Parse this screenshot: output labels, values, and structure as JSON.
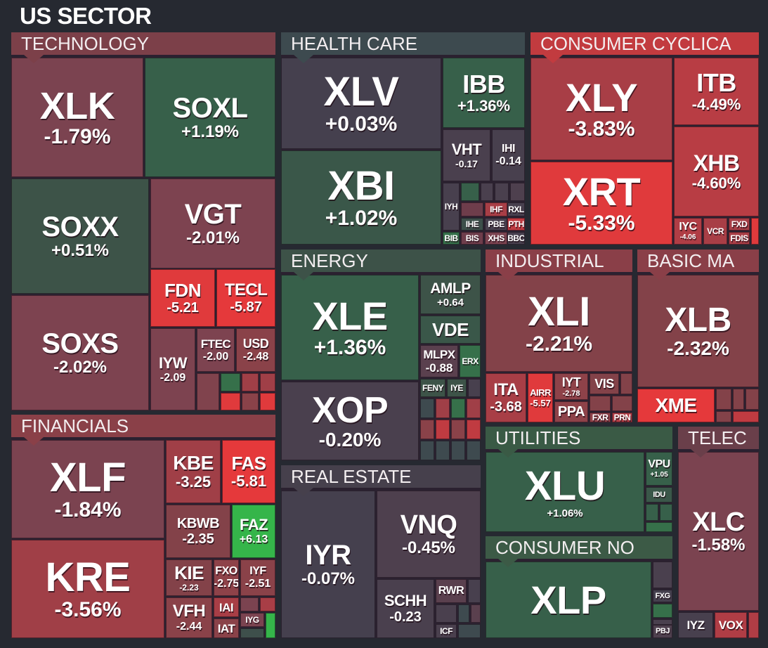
{
  "chart_data": {
    "type": "treemap",
    "title": "US SECTOR",
    "sectors": [
      {
        "name": "TECHNOLOGY",
        "color": "#7c4049",
        "tiles": [
          {
            "ticker": "XLK",
            "change": "-1.79%",
            "color": "#7b4350"
          },
          {
            "ticker": "SOXL",
            "change": "+1.19%",
            "color": "#37604a"
          },
          {
            "ticker": "SOXX",
            "change": "+0.51%",
            "color": "#3d5348"
          },
          {
            "ticker": "VGT",
            "change": "-2.01%",
            "color": "#7d4350"
          },
          {
            "ticker": "FDN",
            "change": "-5.21",
            "color": "#e03a3c"
          },
          {
            "ticker": "TECL",
            "change": "-5.87",
            "color": "#e5393b"
          },
          {
            "ticker": "SOXS",
            "change": "-2.02%",
            "color": "#7d4350"
          },
          {
            "ticker": "IYW",
            "change": "-2.09",
            "color": "#7d4350"
          },
          {
            "ticker": "FTEC",
            "change": "-2.00",
            "color": "#7d4350"
          },
          {
            "ticker": "USD",
            "change": "-2.48",
            "color": "#8a4249"
          },
          {
            "ticker": "",
            "change": "",
            "color": "#80434d"
          },
          {
            "ticker": "",
            "change": "",
            "color": "#36704a"
          },
          {
            "ticker": "",
            "change": "",
            "color": "#a03f47"
          },
          {
            "ticker": "",
            "change": "",
            "color": "#a03f47"
          },
          {
            "ticker": "",
            "change": "",
            "color": "#e03a3c"
          },
          {
            "ticker": "",
            "change": "",
            "color": "#8a4249"
          },
          {
            "ticker": "",
            "change": "",
            "color": "#e03a3c"
          }
        ]
      },
      {
        "name": "FINANCIALS",
        "color": "#8a4048",
        "tiles": [
          {
            "ticker": "XLF",
            "change": "-1.84%",
            "color": "#7b4350"
          },
          {
            "ticker": "KBE",
            "change": "-3.25",
            "color": "#a03f47"
          },
          {
            "ticker": "FAS",
            "change": "-5.81",
            "color": "#e5393b"
          },
          {
            "ticker": "KBWB",
            "change": "-2.35",
            "color": "#834249"
          },
          {
            "ticker": "FAZ",
            "change": "+6.13",
            "color": "#35b54a"
          },
          {
            "ticker": "KRE",
            "change": "-3.56%",
            "color": "#a03f47"
          },
          {
            "ticker": "KIE",
            "change": "-2.23",
            "color": "#834249"
          },
          {
            "ticker": "FXO",
            "change": "-2.75",
            "color": "#8e4249"
          },
          {
            "ticker": "IYF",
            "change": "-2.51",
            "color": "#8a4249"
          },
          {
            "ticker": "VFH",
            "change": "-2.44",
            "color": "#8a4249"
          },
          {
            "ticker": "IAI",
            "change": "",
            "color": "#a83e46"
          },
          {
            "ticker": "IAT",
            "change": "",
            "color": "#8a4249"
          },
          {
            "ticker": "",
            "change": "",
            "color": "#7b4350"
          },
          {
            "ticker": "",
            "change": "",
            "color": "#a83e46"
          },
          {
            "ticker": "IYG",
            "change": "",
            "color": "#7b4350"
          },
          {
            "ticker": "",
            "change": "",
            "color": "#3e4f4b"
          },
          {
            "ticker": "",
            "change": "",
            "color": "#35b54a"
          }
        ]
      },
      {
        "name": "HEALTH CARE",
        "color": "#3d4a4f",
        "tiles": [
          {
            "ticker": "XLV",
            "change": "+0.03%",
            "color": "#45404e"
          },
          {
            "ticker": "XBI",
            "change": "+1.02%",
            "color": "#3a5749"
          },
          {
            "ticker": "IBB",
            "change": "+1.36%",
            "color": "#37604a"
          },
          {
            "ticker": "VHT",
            "change": "-0.17",
            "color": "#4a404e"
          },
          {
            "ticker": "IHI",
            "change": "-0.14",
            "color": "#48404e"
          },
          {
            "ticker": "IYH",
            "change": "",
            "color": "#48404e"
          },
          {
            "ticker": "",
            "change": "",
            "color": "#37604a"
          },
          {
            "ticker": "",
            "change": "",
            "color": "#4a404e"
          },
          {
            "ticker": "",
            "change": "",
            "color": "#4a404e"
          },
          {
            "ticker": "",
            "change": "",
            "color": "#4e404e"
          },
          {
            "ticker": "",
            "change": "",
            "color": "#6e3d4b"
          },
          {
            "ticker": "IHF",
            "change": "",
            "color": "#a83e46"
          },
          {
            "ticker": "RXL",
            "change": "",
            "color": "#48404e"
          },
          {
            "ticker": "IHE",
            "change": "",
            "color": "#3d4f4a"
          },
          {
            "ticker": "PBE",
            "change": "",
            "color": "#48404e"
          },
          {
            "ticker": "PTH",
            "change": "",
            "color": "#c03b41"
          },
          {
            "ticker": "BIB",
            "change": "",
            "color": "#36704a"
          },
          {
            "ticker": "BIS",
            "change": "",
            "color": "#6e3d4b"
          },
          {
            "ticker": "XHS",
            "change": "",
            "color": "#7b4350"
          },
          {
            "ticker": "BBC",
            "change": "",
            "color": "#48404e"
          }
        ]
      },
      {
        "name": "CONSUMER CYCLICA",
        "color": "#c23b3f",
        "tiles": [
          {
            "ticker": "XLY",
            "change": "-3.83%",
            "color": "#a83e46"
          },
          {
            "ticker": "XRT",
            "change": "-5.33%",
            "color": "#e03a3c"
          },
          {
            "ticker": "ITB",
            "change": "-4.49%",
            "color": "#b83d44"
          },
          {
            "ticker": "XHB",
            "change": "-4.60%",
            "color": "#b83d44"
          },
          {
            "ticker": "IYC",
            "change": "-4.06",
            "color": "#b03d45"
          },
          {
            "ticker": "VCR",
            "change": "",
            "color": "#a83e46"
          },
          {
            "ticker": "FXD",
            "change": "",
            "color": "#a83e46"
          },
          {
            "ticker": "FDIS",
            "change": "",
            "color": "#a83e46"
          },
          {
            "ticker": "",
            "change": "",
            "color": "#e03a3c"
          }
        ]
      },
      {
        "name": "ENERGY",
        "color": "#3d5248",
        "tiles": [
          {
            "ticker": "XLE",
            "change": "+1.36%",
            "color": "#37604a"
          },
          {
            "ticker": "XOP",
            "change": "-0.20%",
            "color": "#4a404e"
          },
          {
            "ticker": "AMLP",
            "change": "+0.64",
            "color": "#3d5348"
          },
          {
            "ticker": "VDE",
            "change": "",
            "color": "#3a5749"
          },
          {
            "ticker": "MLPX",
            "change": "-0.88",
            "color": "#5a404e"
          },
          {
            "ticker": "ERX",
            "change": "",
            "color": "#36704a"
          },
          {
            "ticker": "FENY",
            "change": "",
            "color": "#3d5348"
          },
          {
            "ticker": "IYE",
            "change": "",
            "color": "#3d5348"
          },
          {
            "ticker": "",
            "change": "",
            "color": "#48404e"
          },
          {
            "ticker": "",
            "change": "",
            "color": "#3e4a4f"
          },
          {
            "ticker": "",
            "change": "",
            "color": "#a03f47"
          },
          {
            "ticker": "",
            "change": "",
            "color": "#36704a"
          },
          {
            "ticker": "",
            "change": "",
            "color": "#a03f47"
          },
          {
            "ticker": "",
            "change": "",
            "color": "#8a4249"
          },
          {
            "ticker": "",
            "change": "",
            "color": "#c03b41"
          },
          {
            "ticker": "",
            "change": "",
            "color": "#8a4249"
          },
          {
            "ticker": "",
            "change": "",
            "color": "#c03b41"
          },
          {
            "ticker": "",
            "change": "",
            "color": "#3e4a4f"
          },
          {
            "ticker": "",
            "change": "",
            "color": "#3e4a4f"
          },
          {
            "ticker": "",
            "change": "",
            "color": "#3e4a4f"
          },
          {
            "ticker": "",
            "change": "",
            "color": "#3e4a4f"
          }
        ]
      },
      {
        "name": "REAL ESTATE",
        "color": "#46404c",
        "tiles": [
          {
            "ticker": "IYR",
            "change": "-0.07%",
            "color": "#45404e"
          },
          {
            "ticker": "VNQ",
            "change": "-0.45%",
            "color": "#4e404e"
          },
          {
            "ticker": "SCHH",
            "change": "-0.23",
            "color": "#4a404e"
          },
          {
            "ticker": "RWR",
            "change": "",
            "color": "#5a404e"
          },
          {
            "ticker": "",
            "change": "",
            "color": "#48404e"
          },
          {
            "ticker": "",
            "change": "",
            "color": "#4a404e"
          },
          {
            "ticker": "",
            "change": "",
            "color": "#3e4a4f"
          },
          {
            "ticker": "",
            "change": "",
            "color": "#5a404e"
          },
          {
            "ticker": "ICF",
            "change": "",
            "color": "#4a404e"
          },
          {
            "ticker": "",
            "change": "",
            "color": "#3e4a4f"
          }
        ]
      },
      {
        "name": "INDUSTRIAL",
        "color": "#8a3f48",
        "tiles": [
          {
            "ticker": "XLI",
            "change": "-2.21%",
            "color": "#834249"
          },
          {
            "ticker": "ITA",
            "change": "-3.68",
            "color": "#a83e46"
          },
          {
            "ticker": "AIRR",
            "change": "-5.57",
            "color": "#e03a3c"
          },
          {
            "ticker": "IYT",
            "change": "-2.78",
            "color": "#8e4249"
          },
          {
            "ticker": "VIS",
            "change": "",
            "color": "#834249"
          },
          {
            "ticker": "",
            "change": "",
            "color": "#834249"
          },
          {
            "ticker": "PPA",
            "change": "",
            "color": "#8e4249"
          },
          {
            "ticker": "",
            "change": "",
            "color": "#834249"
          },
          {
            "ticker": "",
            "change": "",
            "color": "#834249"
          },
          {
            "ticker": "FXR",
            "change": "",
            "color": "#8e4249"
          },
          {
            "ticker": "PRN",
            "change": "",
            "color": "#b03d45"
          }
        ]
      },
      {
        "name": "BASIC MA",
        "color": "#8a3f48",
        "tiles": [
          {
            "ticker": "XLB",
            "change": "-2.32%",
            "color": "#834249"
          },
          {
            "ticker": "XME",
            "change": "",
            "color": "#e5393b"
          },
          {
            "ticker": "",
            "change": "",
            "color": "#834249"
          },
          {
            "ticker": "",
            "change": "",
            "color": "#834249"
          },
          {
            "ticker": "",
            "change": "",
            "color": "#834249"
          },
          {
            "ticker": "",
            "change": "",
            "color": "#834249"
          },
          {
            "ticker": "",
            "change": "",
            "color": "#c03b41"
          }
        ]
      },
      {
        "name": "UTILITIES",
        "color": "#3a5a45",
        "tiles": [
          {
            "ticker": "XLU",
            "change": "+1.06%",
            "color": "#37604a"
          },
          {
            "ticker": "VPU",
            "change": "+1.05",
            "color": "#37604a"
          },
          {
            "ticker": "IDU",
            "change": "",
            "color": "#3a5749"
          },
          {
            "ticker": "",
            "change": "",
            "color": "#37604a"
          },
          {
            "ticker": "",
            "change": "",
            "color": "#37604a"
          },
          {
            "ticker": "",
            "change": "",
            "color": "#36704a"
          }
        ]
      },
      {
        "name": "CONSUMER NO",
        "color": "#3c5a46",
        "tiles": [
          {
            "ticker": "XLP",
            "change": "",
            "color": "#37604a"
          },
          {
            "ticker": "",
            "change": "",
            "color": "#4a404e"
          },
          {
            "ticker": "FXG",
            "change": "",
            "color": "#45404e"
          },
          {
            "ticker": "",
            "change": "",
            "color": "#36704a"
          },
          {
            "ticker": "",
            "change": "",
            "color": "#4a404e"
          },
          {
            "ticker": "PBJ",
            "change": "",
            "color": "#4e404e"
          }
        ]
      },
      {
        "name": "TELEC",
        "color": "#6a3f4a",
        "tiles": [
          {
            "ticker": "XLC",
            "change": "-1.58%",
            "color": "#7b4350"
          },
          {
            "ticker": "IYZ",
            "change": "",
            "color": "#48404e"
          },
          {
            "ticker": "VOX",
            "change": "",
            "color": "#b03d45"
          },
          {
            "ticker": "",
            "change": "",
            "color": "#b03d45"
          }
        ]
      }
    ]
  }
}
